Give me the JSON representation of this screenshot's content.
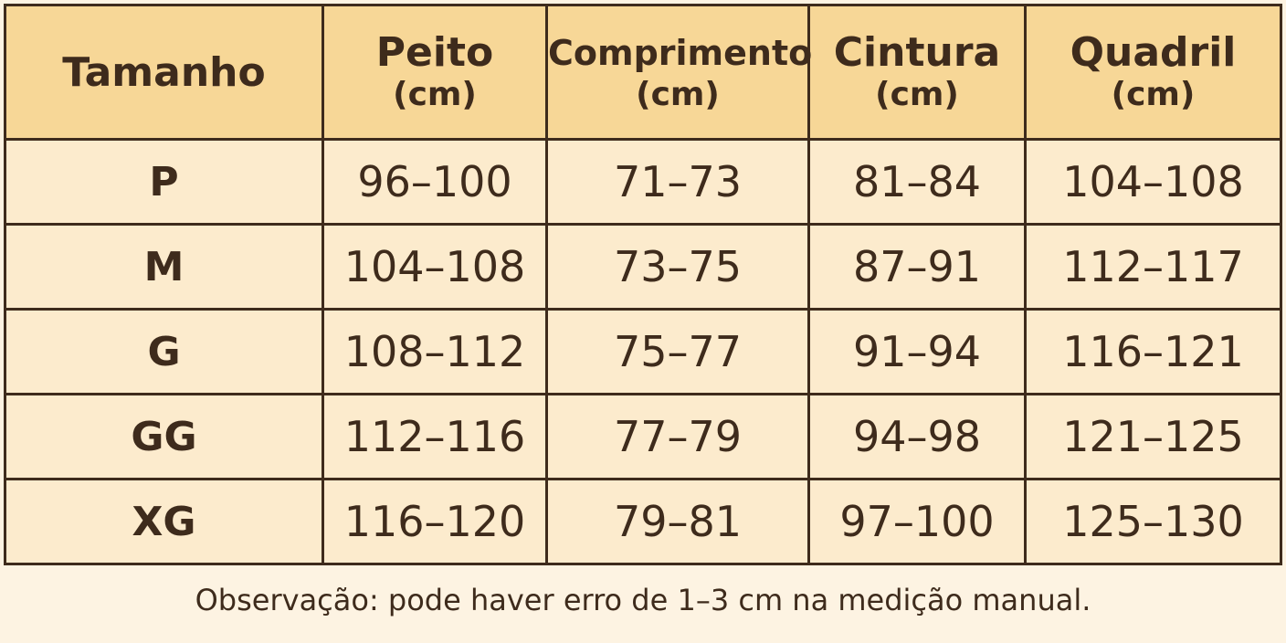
{
  "table": {
    "headers": [
      {
        "label": "Tamanho",
        "unit": ""
      },
      {
        "label": "Peito",
        "unit": "(cm)"
      },
      {
        "label": "Comprimento",
        "unit": "(cm)"
      },
      {
        "label": "Cintura",
        "unit": "(cm)"
      },
      {
        "label": "Quadril",
        "unit": "(cm)"
      }
    ],
    "rows": [
      {
        "size": "P",
        "peito": "96–100",
        "comprimento": "71–73",
        "cintura": "81–84",
        "quadril": "104–108"
      },
      {
        "size": "M",
        "peito": "104–108",
        "comprimento": "73–75",
        "cintura": "87–91",
        "quadril": "112–117"
      },
      {
        "size": "G",
        "peito": "108–112",
        "comprimento": "75–77",
        "cintura": "91–94",
        "quadril": "116–121"
      },
      {
        "size": "GG",
        "peito": "112–116",
        "comprimento": "77–79",
        "cintura": "94–98",
        "quadril": "121–125"
      },
      {
        "size": "XG",
        "peito": "116–120",
        "comprimento": "79–81",
        "cintura": "97–100",
        "quadril": "125–130"
      }
    ]
  },
  "note": "Observação: pode haver erro de 1–3 cm na medição manual.",
  "colors": {
    "header_bg": "#f7d797",
    "cell_bg": "#fcebcd",
    "page_bg": "#fdf3e2",
    "border": "#3e2b1c",
    "text": "#3e2b1c"
  }
}
